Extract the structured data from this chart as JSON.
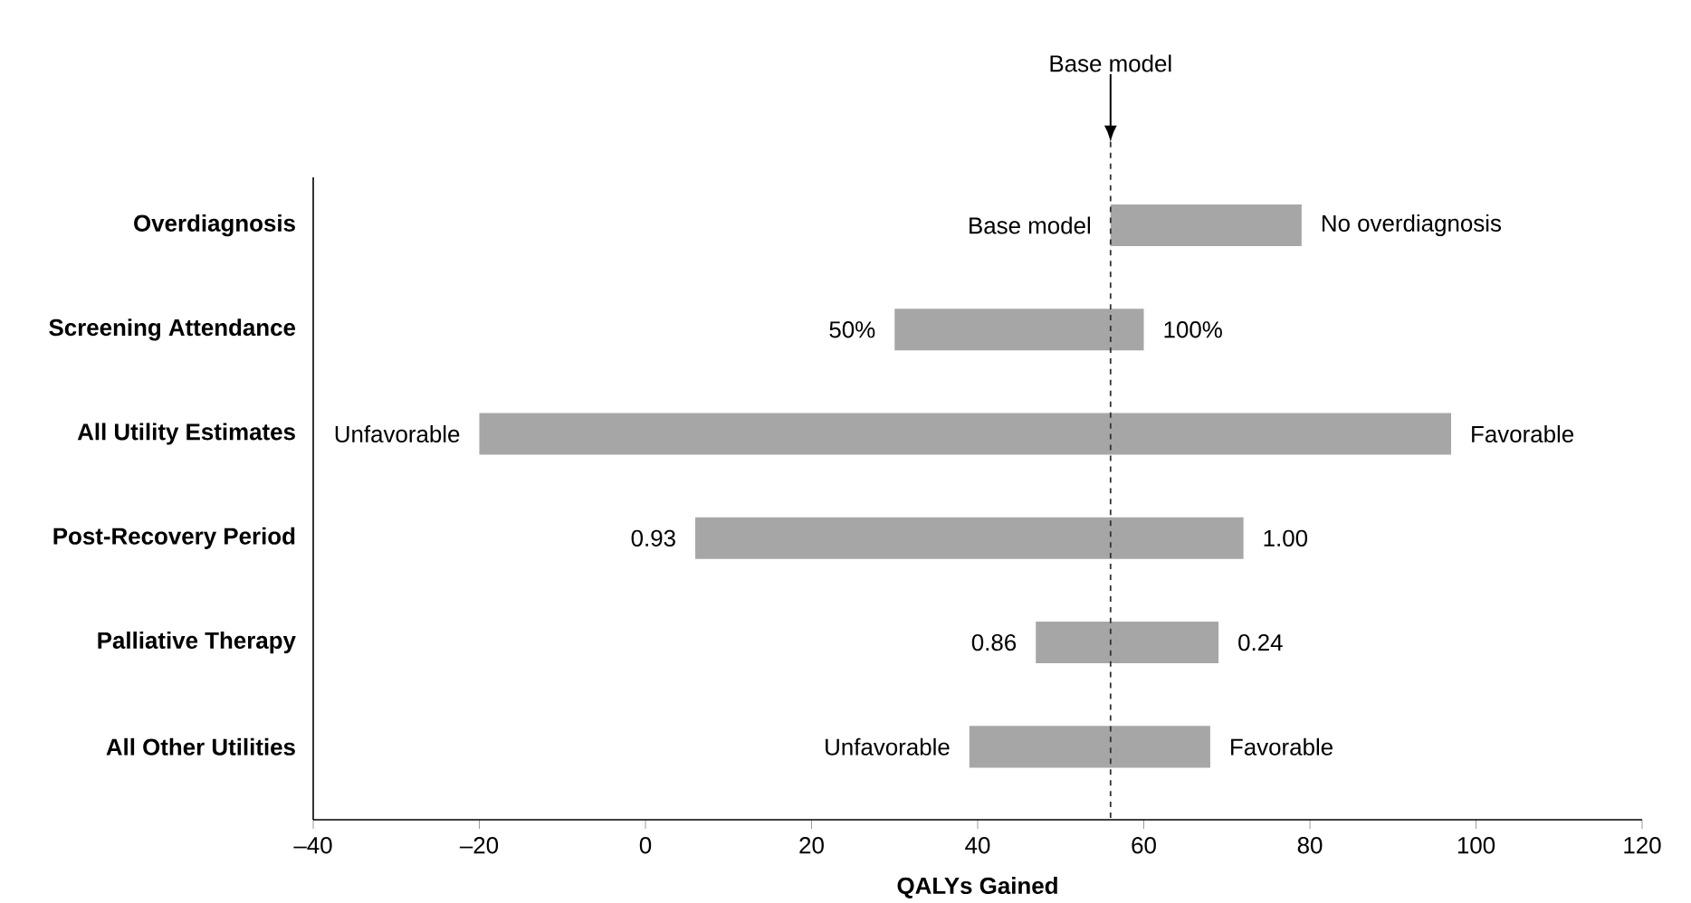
{
  "chart_data": {
    "type": "bar",
    "orientation": "horizontal",
    "categories": [
      "Overdiagnosis",
      "Screening Attendance",
      "All Utility Estimates",
      "Post-Recovery Period",
      "Palliative Therapy",
      "All Other Utilities"
    ],
    "base": [
      56,
      30,
      -20,
      6,
      47,
      39
    ],
    "values": [
      23,
      30,
      117,
      66,
      22,
      29
    ],
    "color": "#a6a6a6",
    "xlim": [
      -40,
      120
    ],
    "xticks": [
      {
        "value": -40,
        "label": "–40"
      },
      {
        "value": -20,
        "label": "–20"
      },
      0,
      20,
      40,
      60,
      80,
      100,
      120
    ],
    "xlabel": "QALYs Gained",
    "ref_lines": [
      {
        "axis": "x",
        "value": 56,
        "label": "Base model",
        "line_style": "dashed",
        "color": "#333333"
      }
    ],
    "annotations": [
      {
        "text": "Base model",
        "x": 56,
        "y": "Overdiagnosis"
      },
      {
        "text": "No overdiagnosis",
        "x": 79,
        "y": "Overdiagnosis"
      },
      {
        "text": "50%",
        "x": 30,
        "y": "Screening Attendance"
      },
      {
        "text": "100%",
        "x": 60,
        "y": "Screening Attendance"
      },
      {
        "text": "Unfavorable",
        "x": -20,
        "y": "All Utility Estimates"
      },
      {
        "text": "Favorable",
        "x": 97,
        "y": "All Utility Estimates"
      },
      {
        "text": "0.93",
        "x": 6,
        "y": "Post-Recovery Period"
      },
      {
        "text": "1.00",
        "x": 72,
        "y": "Post-Recovery Period"
      },
      {
        "text": "0.86",
        "x": 47,
        "y": "Palliative Therapy"
      },
      {
        "text": "0.24",
        "x": 69,
        "y": "Palliative Therapy"
      },
      {
        "text": "Unfavorable",
        "x": 39,
        "y": "All Other Utilities"
      },
      {
        "text": "Favorable",
        "x": 68,
        "y": "All Other Utilities"
      }
    ]
  }
}
